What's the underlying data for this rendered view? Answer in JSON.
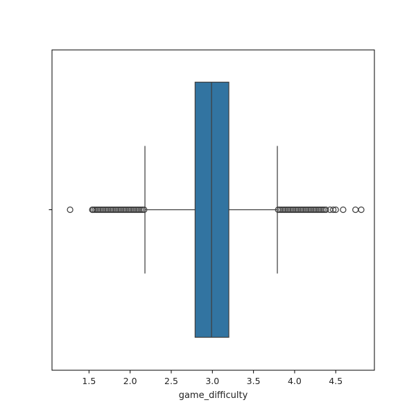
{
  "chart_data": {
    "type": "box",
    "xlabel": "game_difficulty",
    "ylabel": "",
    "title": "",
    "xlim": [
      1.05,
      4.97
    ],
    "xticks": [
      1.5,
      2.0,
      2.5,
      3.0,
      3.5,
      4.0,
      4.5
    ],
    "xtick_labels": [
      "1.5",
      "2.0",
      "2.5",
      "3.0",
      "3.5",
      "4.0",
      "4.5"
    ],
    "grid": false,
    "box": {
      "whisker_low": 2.18,
      "q1": 2.79,
      "median": 2.99,
      "q3": 3.2,
      "whisker_high": 3.79,
      "color": "#3274a1",
      "edge_color": "#3f3f3f"
    },
    "outliers_low": [
      1.27,
      1.54,
      1.55,
      1.57,
      1.59,
      1.61,
      1.63,
      1.65,
      1.67,
      1.69,
      1.71,
      1.73,
      1.75,
      1.77,
      1.79,
      1.81,
      1.83,
      1.85,
      1.87,
      1.89,
      1.91,
      1.93,
      1.95,
      1.97,
      1.99,
      2.01,
      2.03,
      2.05,
      2.07,
      2.09,
      2.11,
      2.13,
      2.15,
      2.17
    ],
    "outliers_high": [
      3.8,
      3.82,
      3.84,
      3.86,
      3.88,
      3.9,
      3.92,
      3.94,
      3.96,
      3.98,
      4.0,
      4.02,
      4.04,
      4.06,
      4.08,
      4.1,
      4.12,
      4.14,
      4.16,
      4.18,
      4.2,
      4.22,
      4.24,
      4.26,
      4.28,
      4.3,
      4.32,
      4.34,
      4.36,
      4.38,
      4.43,
      4.47,
      4.5,
      4.59,
      4.74,
      4.81
    ]
  }
}
